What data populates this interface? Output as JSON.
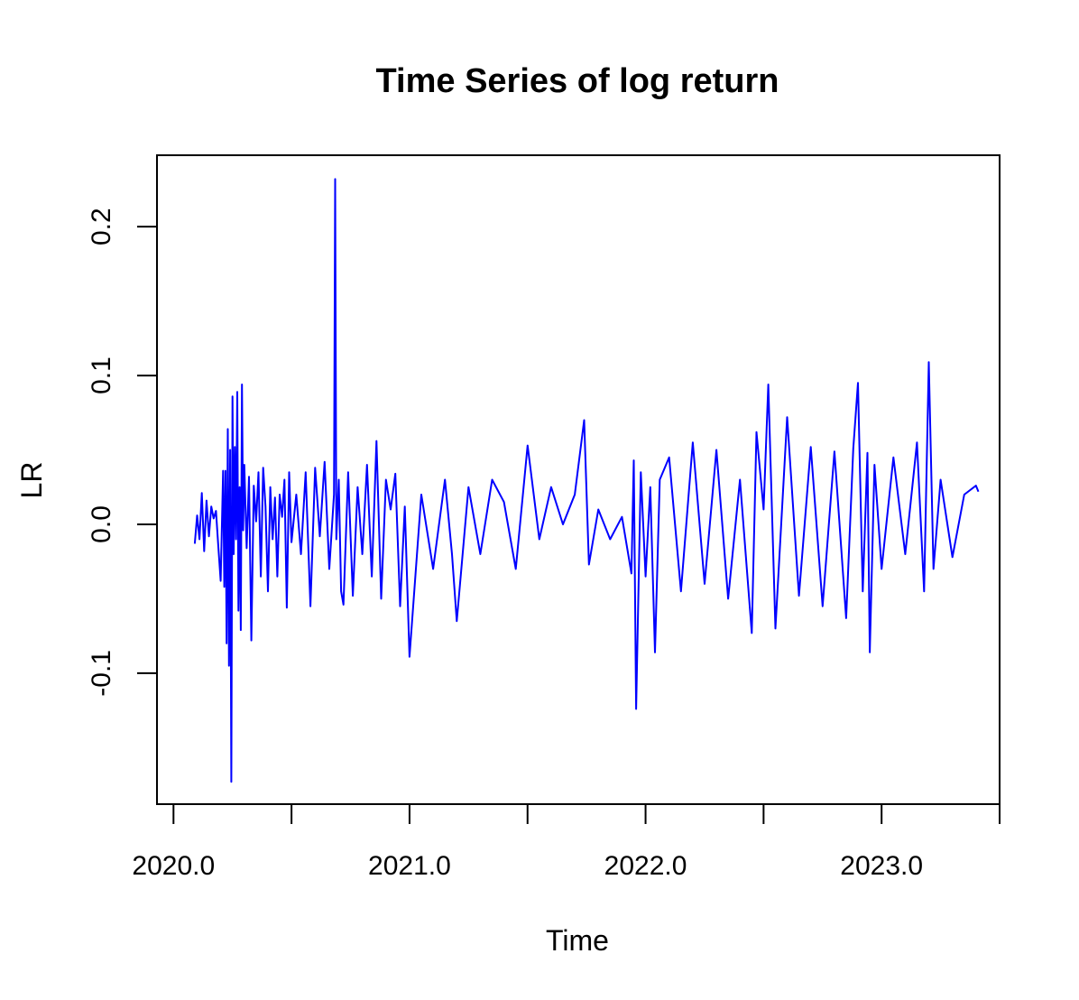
{
  "chart_data": {
    "type": "line",
    "title": "Time Series of log return",
    "xlabel": "Time",
    "ylabel": "LR",
    "xlim": [
      2019.93,
      2023.5
    ],
    "ylim": [
      -0.188,
      0.248
    ],
    "grid": false,
    "series_color": "#0000ff",
    "x_ticks": [
      {
        "value": 2020.0,
        "label": "2020.0"
      },
      {
        "value": 2020.5,
        "label": ""
      },
      {
        "value": 2021.0,
        "label": "2021.0"
      },
      {
        "value": 2021.5,
        "label": ""
      },
      {
        "value": 2022.0,
        "label": "2022.0"
      },
      {
        "value": 2022.5,
        "label": ""
      },
      {
        "value": 2023.0,
        "label": "2023.0"
      },
      {
        "value": 2023.5,
        "label": ""
      }
    ],
    "y_ticks": [
      {
        "value": -0.1,
        "label": "-0.1"
      },
      {
        "value": 0.0,
        "label": "0.0"
      },
      {
        "value": 0.1,
        "label": "0.1"
      },
      {
        "value": 0.2,
        "label": "0.2"
      }
    ],
    "series": [
      {
        "x": [
          2020.09,
          2020.1,
          2020.11,
          2020.12,
          2020.13,
          2020.14,
          2020.15,
          2020.16,
          2020.17,
          2020.18,
          2020.19,
          2020.2,
          2020.21,
          2020.215,
          2020.22,
          2020.225,
          2020.23,
          2020.235,
          2020.24,
          2020.245,
          2020.25,
          2020.255,
          2020.26,
          2020.265,
          2020.27,
          2020.275,
          2020.28,
          2020.285,
          2020.29,
          2020.295,
          2020.3,
          2020.31,
          2020.32,
          2020.33,
          2020.34,
          2020.35,
          2020.36,
          2020.37,
          2020.38,
          2020.39,
          2020.4,
          2020.41,
          2020.42,
          2020.43,
          2020.44,
          2020.45,
          2020.46,
          2020.47,
          2020.48,
          2020.49,
          2020.5,
          2020.52,
          2020.54,
          2020.56,
          2020.58,
          2020.6,
          2020.62,
          2020.64,
          2020.66,
          2020.68,
          2020.685,
          2020.69,
          2020.7,
          2020.71,
          2020.72,
          2020.74,
          2020.76,
          2020.78,
          2020.8,
          2020.82,
          2020.84,
          2020.86,
          2020.88,
          2020.9,
          2020.92,
          2020.94,
          2020.96,
          2020.98,
          2021.0,
          2021.05,
          2021.1,
          2021.15,
          2021.18,
          2021.2,
          2021.25,
          2021.3,
          2021.35,
          2021.4,
          2021.45,
          2021.5,
          2021.55,
          2021.6,
          2021.65,
          2021.7,
          2021.74,
          2021.76,
          2021.8,
          2021.85,
          2021.9,
          2021.94,
          2021.95,
          2021.96,
          2021.98,
          2022.0,
          2022.02,
          2022.04,
          2022.06,
          2022.1,
          2022.15,
          2022.2,
          2022.25,
          2022.3,
          2022.35,
          2022.4,
          2022.45,
          2022.47,
          2022.5,
          2022.52,
          2022.55,
          2022.6,
          2022.65,
          2022.7,
          2022.75,
          2022.8,
          2022.85,
          2022.88,
          2022.9,
          2022.92,
          2022.94,
          2022.95,
          2022.97,
          2023.0,
          2023.05,
          2023.1,
          2023.15,
          2023.18,
          2023.2,
          2023.22,
          2023.25,
          2023.3,
          2023.35,
          2023.4,
          2023.41
        ],
        "y": [
          -0.013,
          0.006,
          -0.01,
          0.021,
          -0.018,
          0.016,
          -0.008,
          0.012,
          0.004,
          0.009,
          -0.015,
          -0.038,
          0.036,
          -0.042,
          0.036,
          -0.08,
          0.064,
          -0.095,
          0.05,
          -0.173,
          0.086,
          -0.02,
          0.052,
          -0.01,
          0.089,
          -0.058,
          0.025,
          -0.071,
          0.094,
          -0.004,
          0.04,
          -0.016,
          0.032,
          -0.078,
          0.026,
          0.002,
          0.035,
          -0.035,
          0.038,
          0.012,
          -0.045,
          0.025,
          -0.01,
          0.018,
          -0.035,
          0.02,
          0.005,
          0.03,
          -0.056,
          0.035,
          -0.012,
          0.02,
          -0.02,
          0.035,
          -0.055,
          0.038,
          -0.008,
          0.042,
          -0.03,
          0.02,
          0.232,
          -0.01,
          0.03,
          -0.045,
          -0.054,
          0.035,
          -0.048,
          0.025,
          -0.02,
          0.04,
          -0.035,
          0.056,
          -0.05,
          0.03,
          0.01,
          0.034,
          -0.055,
          0.012,
          -0.089,
          0.02,
          -0.03,
          0.03,
          -0.02,
          -0.065,
          0.025,
          -0.02,
          0.03,
          0.015,
          -0.03,
          0.053,
          -0.01,
          0.025,
          0.0,
          0.02,
          0.07,
          -0.027,
          0.01,
          -0.01,
          0.005,
          -0.033,
          0.043,
          -0.124,
          0.035,
          -0.035,
          0.025,
          -0.086,
          0.03,
          0.045,
          -0.045,
          0.055,
          -0.04,
          0.05,
          -0.05,
          0.03,
          -0.073,
          0.062,
          0.01,
          0.094,
          -0.07,
          0.072,
          -0.048,
          0.052,
          -0.055,
          0.049,
          -0.063,
          0.051,
          0.095,
          -0.045,
          0.048,
          -0.086,
          0.04,
          -0.03,
          0.045,
          -0.02,
          0.055,
          -0.045,
          0.109,
          -0.03,
          0.03,
          -0.022,
          0.02,
          0.026,
          0.022
        ]
      }
    ]
  }
}
